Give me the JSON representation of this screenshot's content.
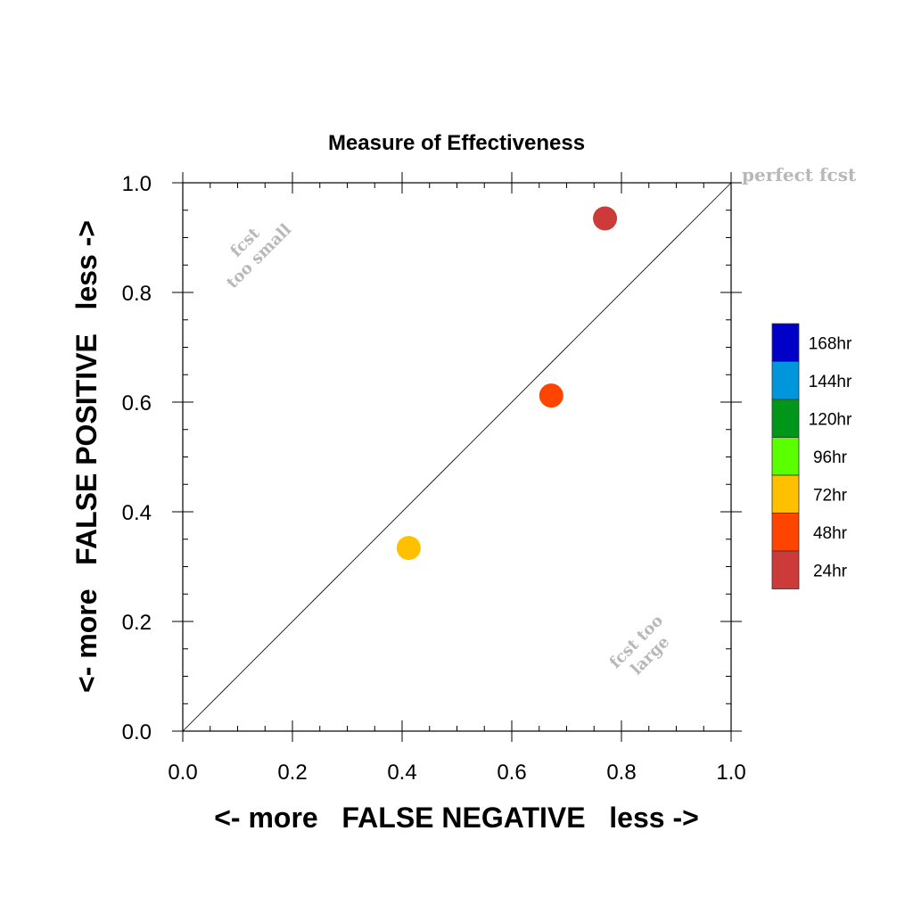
{
  "chart_data": {
    "type": "scatter",
    "title": "Measure of Effectiveness",
    "xlabel": "<- more   FALSE NEGATIVE   less ->",
    "ylabel": "<- more   FALSE POSITIVE   less ->",
    "xlim": [
      0.0,
      1.0
    ],
    "ylim": [
      0.0,
      1.0
    ],
    "x_ticks": [
      "0.0",
      "0.2",
      "0.4",
      "0.6",
      "0.8",
      "1.0"
    ],
    "y_ticks": [
      "0.0",
      "0.2",
      "0.4",
      "0.6",
      "0.8",
      "1.0"
    ],
    "grid": false,
    "reference_line": {
      "from": [
        0,
        0
      ],
      "to": [
        1,
        1
      ]
    },
    "annotations": {
      "perfect": "perfect fcst",
      "too_small_1": "fcst",
      "too_small_2": "too small",
      "too_large_1": "fcst too",
      "too_large_2": "large"
    },
    "points": [
      {
        "x": 0.77,
        "y": 0.935,
        "series": "24hr",
        "color": "#cc3a3a"
      },
      {
        "x": 0.672,
        "y": 0.612,
        "series": "48hr",
        "color": "#ff4400"
      },
      {
        "x": 0.412,
        "y": 0.334,
        "series": "72hr",
        "color": "#ffc000"
      }
    ],
    "legend": {
      "placement": "right",
      "items": [
        {
          "label": "168hr",
          "color": "#0000c8"
        },
        {
          "label": "144hr",
          "color": "#0096dc"
        },
        {
          "label": "120hr",
          "color": "#009619"
        },
        {
          "label": "96hr",
          "color": "#5aff00"
        },
        {
          "label": "72hr",
          "color": "#ffc000"
        },
        {
          "label": "48hr",
          "color": "#ff4400"
        },
        {
          "label": "24hr",
          "color": "#cc3a3a"
        }
      ]
    }
  }
}
